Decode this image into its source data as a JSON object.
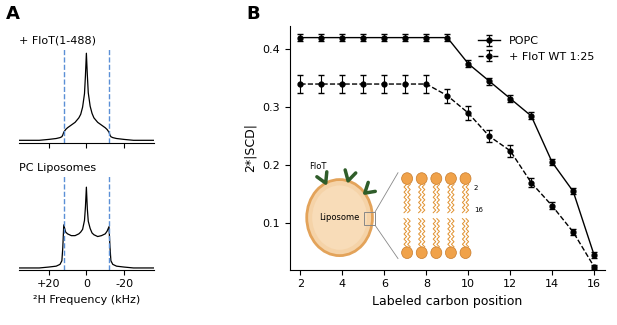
{
  "chart_data": [
    {
      "type": "line",
      "title": "A",
      "x": [
        36,
        30,
        25,
        20,
        16,
        14,
        13,
        12.5,
        12,
        11,
        10,
        8,
        6,
        4,
        3,
        2,
        1,
        0.5,
        0,
        -0.5,
        -1,
        -2,
        -3,
        -4,
        -6,
        -8,
        -10,
        -11,
        -12,
        -12.5,
        -13,
        -14,
        -16,
        -20,
        -25,
        -30,
        -36
      ],
      "series": [
        {
          "name": "+ FloT(1-488)",
          "color": "#000000",
          "values": [
            3,
            3,
            3,
            4,
            5,
            6,
            7,
            9,
            12,
            15,
            17,
            20,
            23,
            28,
            32,
            40,
            55,
            75,
            100,
            76,
            56,
            41,
            33,
            28,
            23,
            20,
            17,
            15,
            12,
            9,
            7,
            6,
            5,
            4,
            3,
            3,
            3
          ]
        },
        {
          "name": "PC Liposomes",
          "color": "#000000",
          "values": [
            2,
            2,
            2,
            3,
            4,
            6,
            10,
            25,
            50,
            42,
            40,
            38,
            38,
            40,
            42,
            45,
            55,
            70,
            92,
            68,
            54,
            46,
            41,
            39,
            37,
            38,
            40,
            43,
            48,
            26,
            10,
            6,
            4,
            3,
            2,
            2,
            2
          ]
        }
      ],
      "xlabel": "²H Frequency (kHz)",
      "xlim": [
        36,
        -36
      ],
      "xticks": [
        {
          "value": 20,
          "label": "+20"
        },
        0,
        {
          "value": -20,
          "label": "-20"
        }
      ],
      "ylim": [
        0,
        105
      ],
      "tick_labels": "x",
      "reference_lines": {
        "values": [
          12,
          -12
        ],
        "color": "#5b8fd6",
        "line_style": "dashed"
      }
    },
    {
      "type": "line",
      "title": "B",
      "x": [
        2,
        3,
        4,
        5,
        6,
        7,
        8,
        9,
        10,
        11,
        12,
        13,
        14,
        15,
        16
      ],
      "series": [
        {
          "name": "POPC",
          "color": "#000000",
          "marker": "o",
          "line_style": "solid",
          "values": [
            0.42,
            0.42,
            0.42,
            0.42,
            0.42,
            0.42,
            0.42,
            0.42,
            0.375,
            0.345,
            0.315,
            0.285,
            0.205,
            0.155,
            0.045
          ],
          "errors": [
            0.006,
            0.006,
            0.006,
            0.006,
            0.006,
            0.006,
            0.006,
            0.006,
            0.006,
            0.006,
            0.006,
            0.006,
            0.005,
            0.005,
            0.005
          ]
        },
        {
          "name": "+ FloT WT 1:25",
          "color": "#000000",
          "marker": "o",
          "line_style": "dashed",
          "values": [
            0.34,
            0.34,
            0.34,
            0.34,
            0.34,
            0.34,
            0.34,
            0.32,
            0.29,
            0.25,
            0.225,
            0.17,
            0.13,
            0.085,
            0.025
          ],
          "errors": [
            0.015,
            0.015,
            0.015,
            0.015,
            0.015,
            0.015,
            0.015,
            0.012,
            0.012,
            0.01,
            0.01,
            0.008,
            0.006,
            0.005,
            0.004
          ]
        }
      ],
      "xlabel": "Labeled carbon position",
      "ylabel": "2*|SCD|",
      "xlim": [
        1.5,
        16.5
      ],
      "xticks": [
        2,
        4,
        6,
        8,
        10,
        12,
        14,
        16
      ],
      "ylim": [
        0.02,
        0.44
      ],
      "yticks": [
        0.1,
        0.2,
        0.3,
        0.4
      ],
      "legend": "upper right",
      "annotations": [
        "FloT",
        "Liposome",
        "2",
        "16"
      ]
    }
  ]
}
